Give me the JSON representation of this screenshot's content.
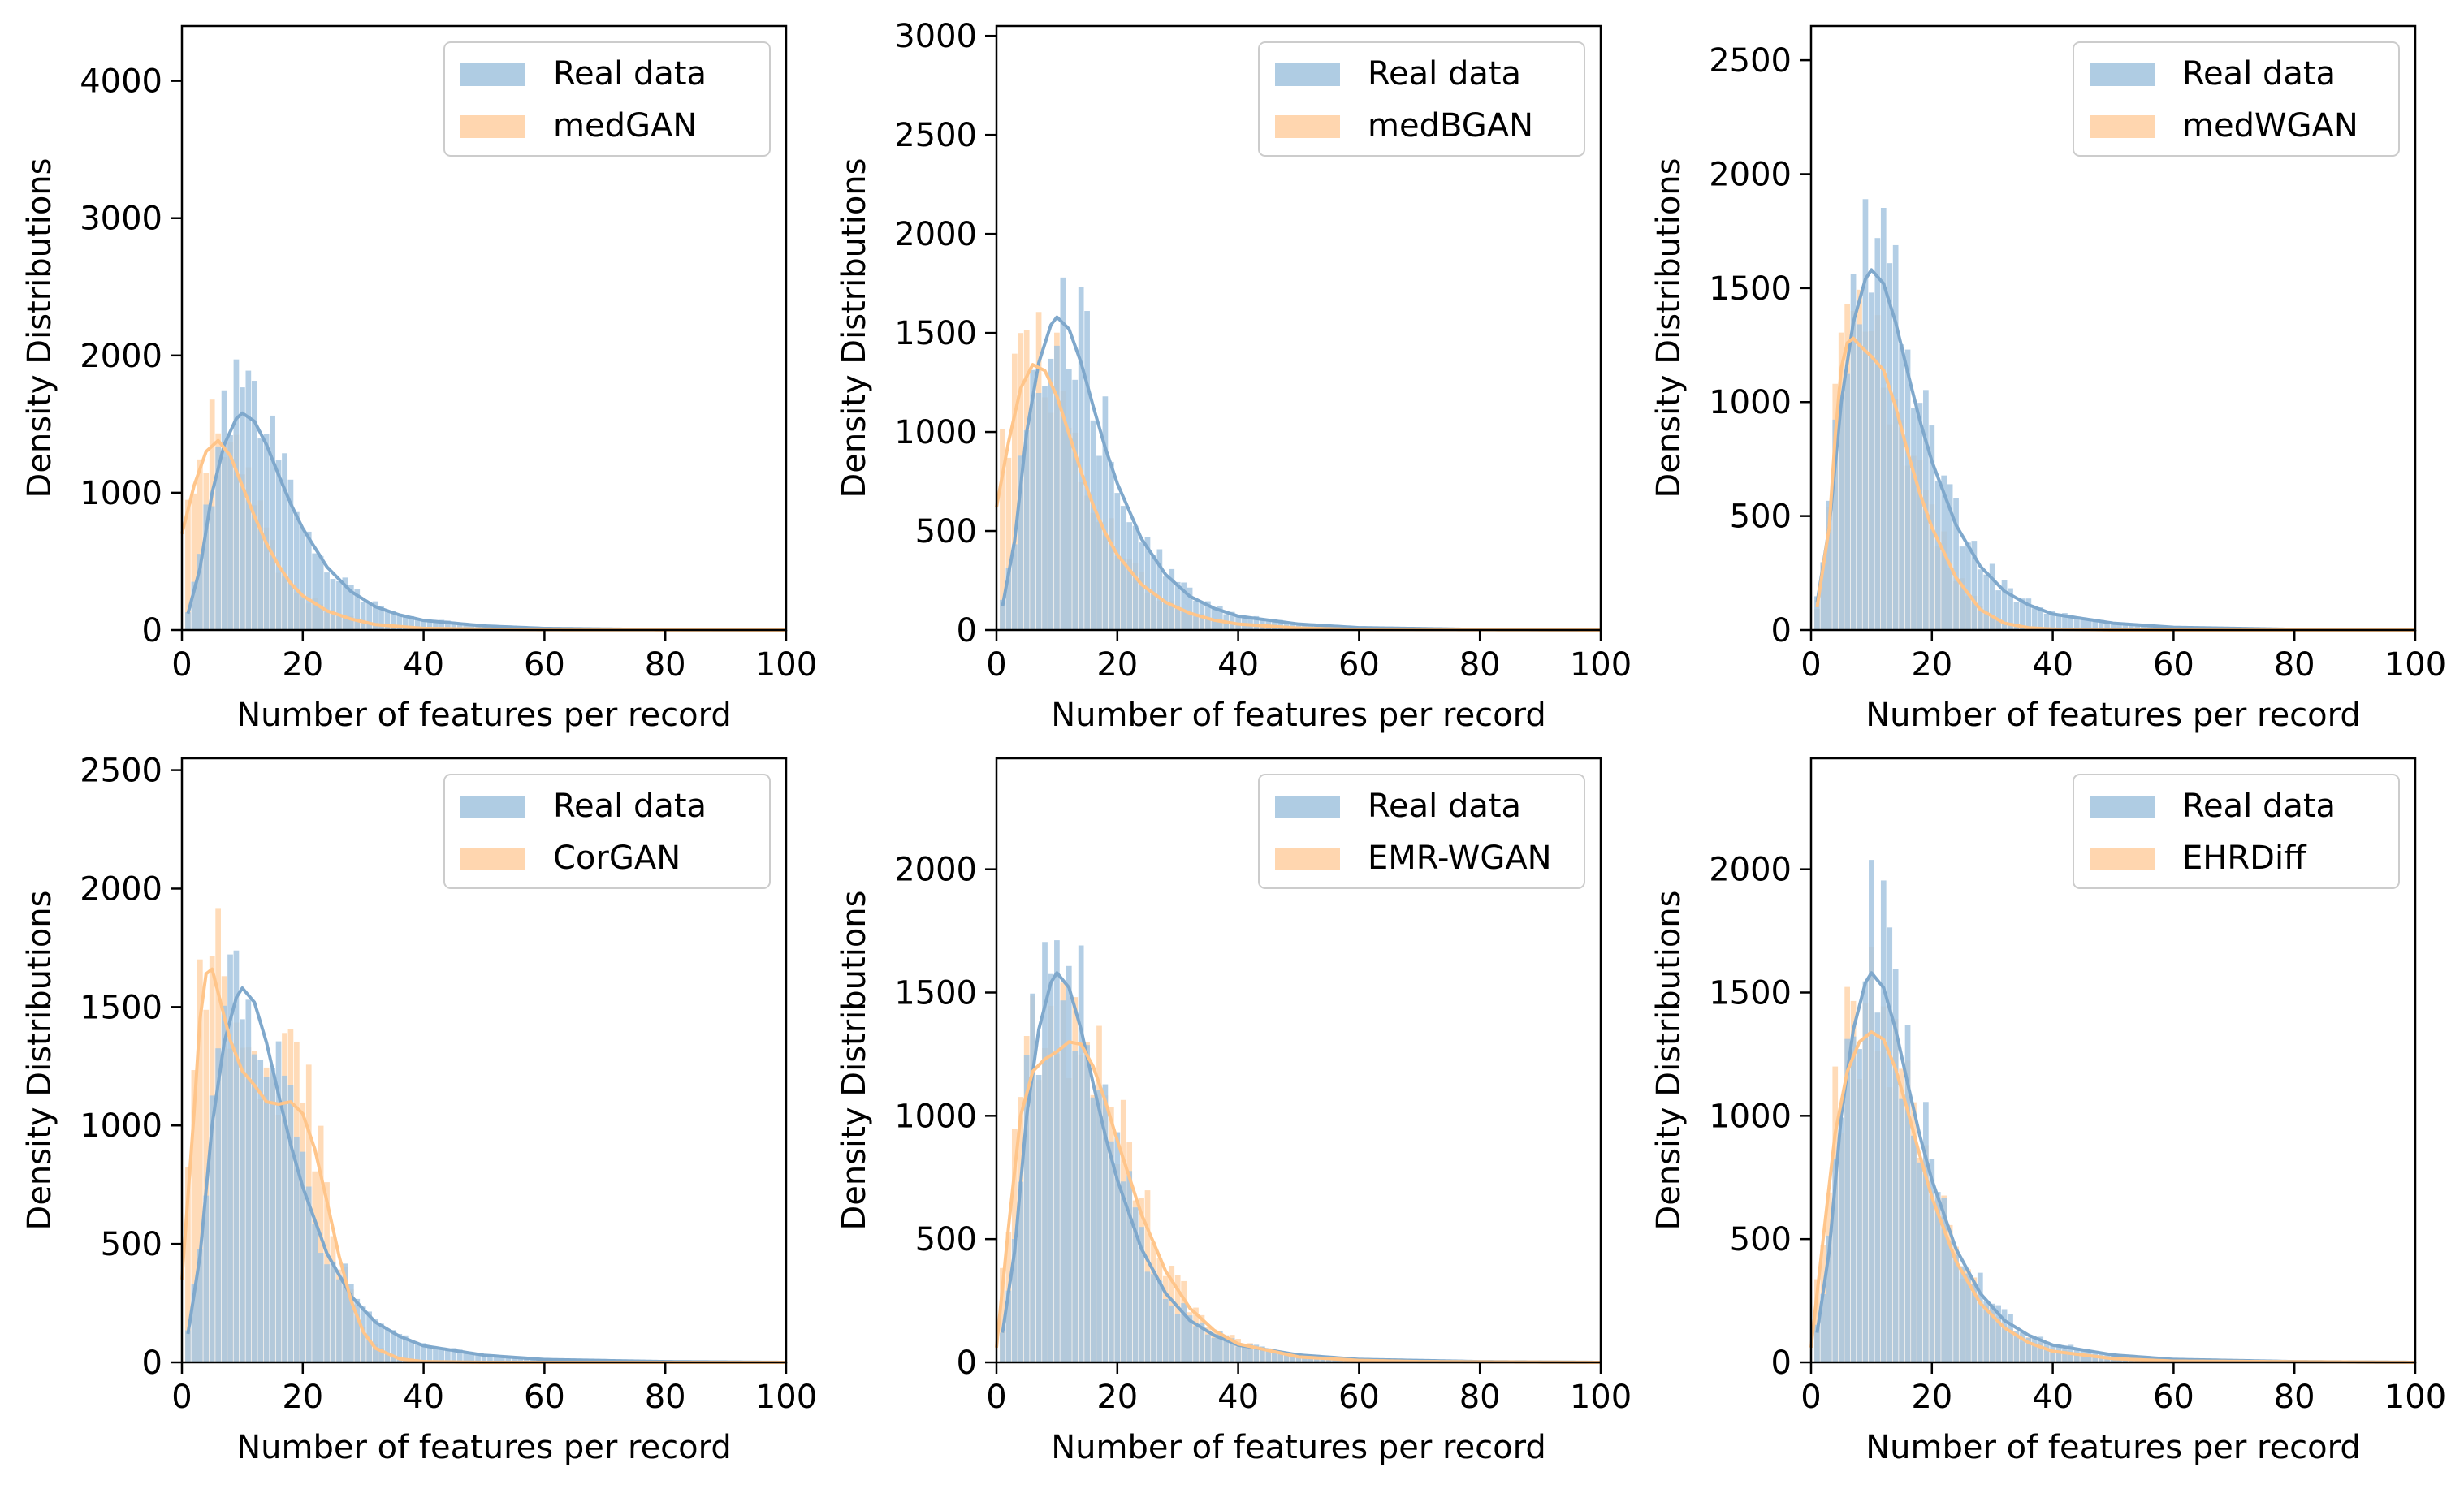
{
  "palette": {
    "real": "#7fa8cc",
    "real_fill": "#a6c6e0",
    "synthetic": "#ffc58a",
    "synthetic_fill": "#ffd2a6"
  },
  "chart_data": [
    {
      "type": "histogram",
      "xlabel": "Number of features per record",
      "ylabel": "Density Distributions",
      "xlim": [
        0,
        100
      ],
      "ylim": [
        0,
        4400
      ],
      "xticks": [
        0,
        20,
        40,
        60,
        80,
        100
      ],
      "yticks": [
        0,
        1000,
        2000,
        3000,
        4000
      ],
      "grid": false,
      "legend_position": "top-right",
      "series": [
        {
          "name": "Real data",
          "kde": [
            [
              1,
              120
            ],
            [
              3,
              450
            ],
            [
              5,
              1000
            ],
            [
              7,
              1350
            ],
            [
              9,
              1540
            ],
            [
              10,
              1580
            ],
            [
              12,
              1520
            ],
            [
              14,
              1350
            ],
            [
              16,
              1130
            ],
            [
              18,
              920
            ],
            [
              20,
              740
            ],
            [
              24,
              460
            ],
            [
              28,
              280
            ],
            [
              32,
              170
            ],
            [
              36,
              110
            ],
            [
              40,
              70
            ],
            [
              50,
              30
            ],
            [
              60,
              12
            ],
            [
              80,
              3
            ],
            [
              100,
              0
            ]
          ]
        },
        {
          "name": "medGAN",
          "kde": [
            [
              0,
              700
            ],
            [
              2,
              1050
            ],
            [
              4,
              1300
            ],
            [
              6,
              1380
            ],
            [
              8,
              1270
            ],
            [
              10,
              1050
            ],
            [
              12,
              830
            ],
            [
              14,
              630
            ],
            [
              16,
              470
            ],
            [
              18,
              340
            ],
            [
              20,
              250
            ],
            [
              24,
              140
            ],
            [
              28,
              80
            ],
            [
              32,
              40
            ],
            [
              40,
              12
            ],
            [
              60,
              2
            ],
            [
              100,
              0
            ]
          ]
        }
      ]
    },
    {
      "type": "histogram",
      "xlabel": "Number of features per record",
      "ylabel": "Density Distributions",
      "xlim": [
        0,
        100
      ],
      "ylim": [
        0,
        3050
      ],
      "xticks": [
        0,
        20,
        40,
        60,
        80,
        100
      ],
      "yticks": [
        0,
        500,
        1000,
        1500,
        2000,
        2500,
        3000
      ],
      "grid": false,
      "legend_position": "top-right",
      "series": [
        {
          "name": "Real data",
          "kde": [
            [
              1,
              120
            ],
            [
              3,
              450
            ],
            [
              5,
              1000
            ],
            [
              7,
              1350
            ],
            [
              9,
              1540
            ],
            [
              10,
              1580
            ],
            [
              12,
              1520
            ],
            [
              14,
              1350
            ],
            [
              16,
              1130
            ],
            [
              18,
              920
            ],
            [
              20,
              740
            ],
            [
              24,
              460
            ],
            [
              28,
              280
            ],
            [
              32,
              170
            ],
            [
              36,
              110
            ],
            [
              40,
              70
            ],
            [
              50,
              30
            ],
            [
              60,
              12
            ],
            [
              80,
              3
            ],
            [
              100,
              0
            ]
          ]
        },
        {
          "name": "medBGAN",
          "kde": [
            [
              0,
              620
            ],
            [
              2,
              950
            ],
            [
              4,
              1220
            ],
            [
              6,
              1340
            ],
            [
              8,
              1310
            ],
            [
              10,
              1180
            ],
            [
              12,
              990
            ],
            [
              14,
              800
            ],
            [
              16,
              630
            ],
            [
              18,
              490
            ],
            [
              20,
              380
            ],
            [
              24,
              230
            ],
            [
              28,
              140
            ],
            [
              32,
              85
            ],
            [
              36,
              50
            ],
            [
              40,
              30
            ],
            [
              50,
              10
            ],
            [
              60,
              3
            ],
            [
              100,
              0
            ]
          ]
        }
      ]
    },
    {
      "type": "histogram",
      "xlabel": "Number of features per record",
      "ylabel": "Density Distributions",
      "xlim": [
        0,
        100
      ],
      "ylim": [
        0,
        2650
      ],
      "xticks": [
        0,
        20,
        40,
        60,
        80,
        100
      ],
      "yticks": [
        0,
        500,
        1000,
        1500,
        2000,
        2500
      ],
      "grid": false,
      "legend_position": "top-right",
      "series": [
        {
          "name": "Real data",
          "kde": [
            [
              1,
              120
            ],
            [
              3,
              450
            ],
            [
              5,
              1000
            ],
            [
              7,
              1350
            ],
            [
              9,
              1540
            ],
            [
              10,
              1580
            ],
            [
              12,
              1520
            ],
            [
              14,
              1350
            ],
            [
              16,
              1130
            ],
            [
              18,
              920
            ],
            [
              20,
              740
            ],
            [
              24,
              460
            ],
            [
              28,
              280
            ],
            [
              32,
              170
            ],
            [
              36,
              110
            ],
            [
              40,
              70
            ],
            [
              50,
              30
            ],
            [
              60,
              12
            ],
            [
              80,
              3
            ],
            [
              100,
              0
            ]
          ]
        },
        {
          "name": "medWGAN",
          "kde": [
            [
              1,
              100
            ],
            [
              3,
              450
            ],
            [
              4,
              850
            ],
            [
              5,
              1150
            ],
            [
              6,
              1260
            ],
            [
              7,
              1280
            ],
            [
              8,
              1250
            ],
            [
              10,
              1200
            ],
            [
              12,
              1140
            ],
            [
              14,
              980
            ],
            [
              16,
              780
            ],
            [
              18,
              600
            ],
            [
              20,
              450
            ],
            [
              24,
              230
            ],
            [
              28,
              90
            ],
            [
              32,
              30
            ],
            [
              36,
              10
            ],
            [
              40,
              4
            ],
            [
              50,
              0
            ],
            [
              100,
              0
            ]
          ]
        }
      ]
    },
    {
      "type": "histogram",
      "xlabel": "Number of features per record",
      "ylabel": "Density Distributions",
      "xlim": [
        0,
        100
      ],
      "ylim": [
        0,
        2550
      ],
      "xticks": [
        0,
        20,
        40,
        60,
        80,
        100
      ],
      "yticks": [
        0,
        500,
        1000,
        1500,
        2000,
        2500
      ],
      "grid": false,
      "legend_position": "top-right",
      "series": [
        {
          "name": "Real data",
          "kde": [
            [
              1,
              120
            ],
            [
              3,
              450
            ],
            [
              5,
              1000
            ],
            [
              7,
              1350
            ],
            [
              9,
              1540
            ],
            [
              10,
              1580
            ],
            [
              12,
              1520
            ],
            [
              14,
              1350
            ],
            [
              16,
              1130
            ],
            [
              18,
              920
            ],
            [
              20,
              740
            ],
            [
              24,
              460
            ],
            [
              28,
              280
            ],
            [
              32,
              170
            ],
            [
              36,
              110
            ],
            [
              40,
              70
            ],
            [
              50,
              30
            ],
            [
              60,
              12
            ],
            [
              80,
              3
            ],
            [
              100,
              0
            ]
          ]
        },
        {
          "name": "CorGAN",
          "kde": [
            [
              0,
              350
            ],
            [
              2,
              1050
            ],
            [
              3,
              1450
            ],
            [
              4,
              1640
            ],
            [
              5,
              1660
            ],
            [
              6,
              1560
            ],
            [
              8,
              1360
            ],
            [
              10,
              1230
            ],
            [
              12,
              1170
            ],
            [
              14,
              1100
            ],
            [
              16,
              1090
            ],
            [
              18,
              1100
            ],
            [
              20,
              1050
            ],
            [
              22,
              900
            ],
            [
              24,
              680
            ],
            [
              26,
              450
            ],
            [
              28,
              260
            ],
            [
              30,
              130
            ],
            [
              32,
              60
            ],
            [
              36,
              15
            ],
            [
              40,
              3
            ],
            [
              50,
              0
            ],
            [
              100,
              0
            ]
          ]
        }
      ]
    },
    {
      "type": "histogram",
      "xlabel": "Number of features per record",
      "ylabel": "Density Distributions",
      "xlim": [
        0,
        100
      ],
      "ylim": [
        0,
        2450
      ],
      "xticks": [
        0,
        20,
        40,
        60,
        80,
        100
      ],
      "yticks": [
        0,
        500,
        1000,
        1500,
        2000
      ],
      "grid": false,
      "legend_position": "top-right",
      "series": [
        {
          "name": "Real data",
          "kde": [
            [
              1,
              120
            ],
            [
              3,
              450
            ],
            [
              5,
              1000
            ],
            [
              7,
              1350
            ],
            [
              9,
              1540
            ],
            [
              10,
              1580
            ],
            [
              12,
              1520
            ],
            [
              14,
              1350
            ],
            [
              16,
              1130
            ],
            [
              18,
              920
            ],
            [
              20,
              740
            ],
            [
              24,
              460
            ],
            [
              28,
              280
            ],
            [
              32,
              170
            ],
            [
              36,
              110
            ],
            [
              40,
              70
            ],
            [
              50,
              30
            ],
            [
              60,
              12
            ],
            [
              80,
              3
            ],
            [
              100,
              0
            ]
          ]
        },
        {
          "name": "EMR-WGAN",
          "kde": [
            [
              0,
              60
            ],
            [
              2,
              550
            ],
            [
              4,
              1000
            ],
            [
              6,
              1180
            ],
            [
              8,
              1230
            ],
            [
              10,
              1260
            ],
            [
              12,
              1300
            ],
            [
              14,
              1290
            ],
            [
              16,
              1200
            ],
            [
              18,
              1060
            ],
            [
              20,
              900
            ],
            [
              24,
              600
            ],
            [
              28,
              370
            ],
            [
              32,
              220
            ],
            [
              36,
              130
            ],
            [
              40,
              75
            ],
            [
              50,
              22
            ],
            [
              60,
              8
            ],
            [
              70,
              3
            ],
            [
              100,
              0
            ]
          ]
        }
      ]
    },
    {
      "type": "histogram",
      "xlabel": "Number of features per record",
      "ylabel": "Density Distributions",
      "xlim": [
        0,
        100
      ],
      "ylim": [
        0,
        2450
      ],
      "xticks": [
        0,
        20,
        40,
        60,
        80,
        100
      ],
      "yticks": [
        0,
        500,
        1000,
        1500,
        2000
      ],
      "grid": false,
      "legend_position": "top-right",
      "series": [
        {
          "name": "Real data",
          "kde": [
            [
              1,
              120
            ],
            [
              3,
              450
            ],
            [
              5,
              1000
            ],
            [
              7,
              1350
            ],
            [
              9,
              1540
            ],
            [
              10,
              1580
            ],
            [
              12,
              1520
            ],
            [
              14,
              1350
            ],
            [
              16,
              1130
            ],
            [
              18,
              920
            ],
            [
              20,
              740
            ],
            [
              24,
              460
            ],
            [
              28,
              280
            ],
            [
              32,
              170
            ],
            [
              36,
              110
            ],
            [
              40,
              70
            ],
            [
              50,
              30
            ],
            [
              60,
              12
            ],
            [
              80,
              3
            ],
            [
              100,
              0
            ]
          ]
        },
        {
          "name": "EHRDiff",
          "kde": [
            [
              0,
              60
            ],
            [
              2,
              500
            ],
            [
              4,
              930
            ],
            [
              6,
              1180
            ],
            [
              8,
              1300
            ],
            [
              10,
              1340
            ],
            [
              12,
              1310
            ],
            [
              14,
              1190
            ],
            [
              16,
              1020
            ],
            [
              18,
              840
            ],
            [
              20,
              670
            ],
            [
              24,
              410
            ],
            [
              28,
              240
            ],
            [
              32,
              140
            ],
            [
              36,
              80
            ],
            [
              40,
              45
            ],
            [
              50,
              15
            ],
            [
              60,
              5
            ],
            [
              100,
              0
            ]
          ]
        }
      ]
    }
  ]
}
